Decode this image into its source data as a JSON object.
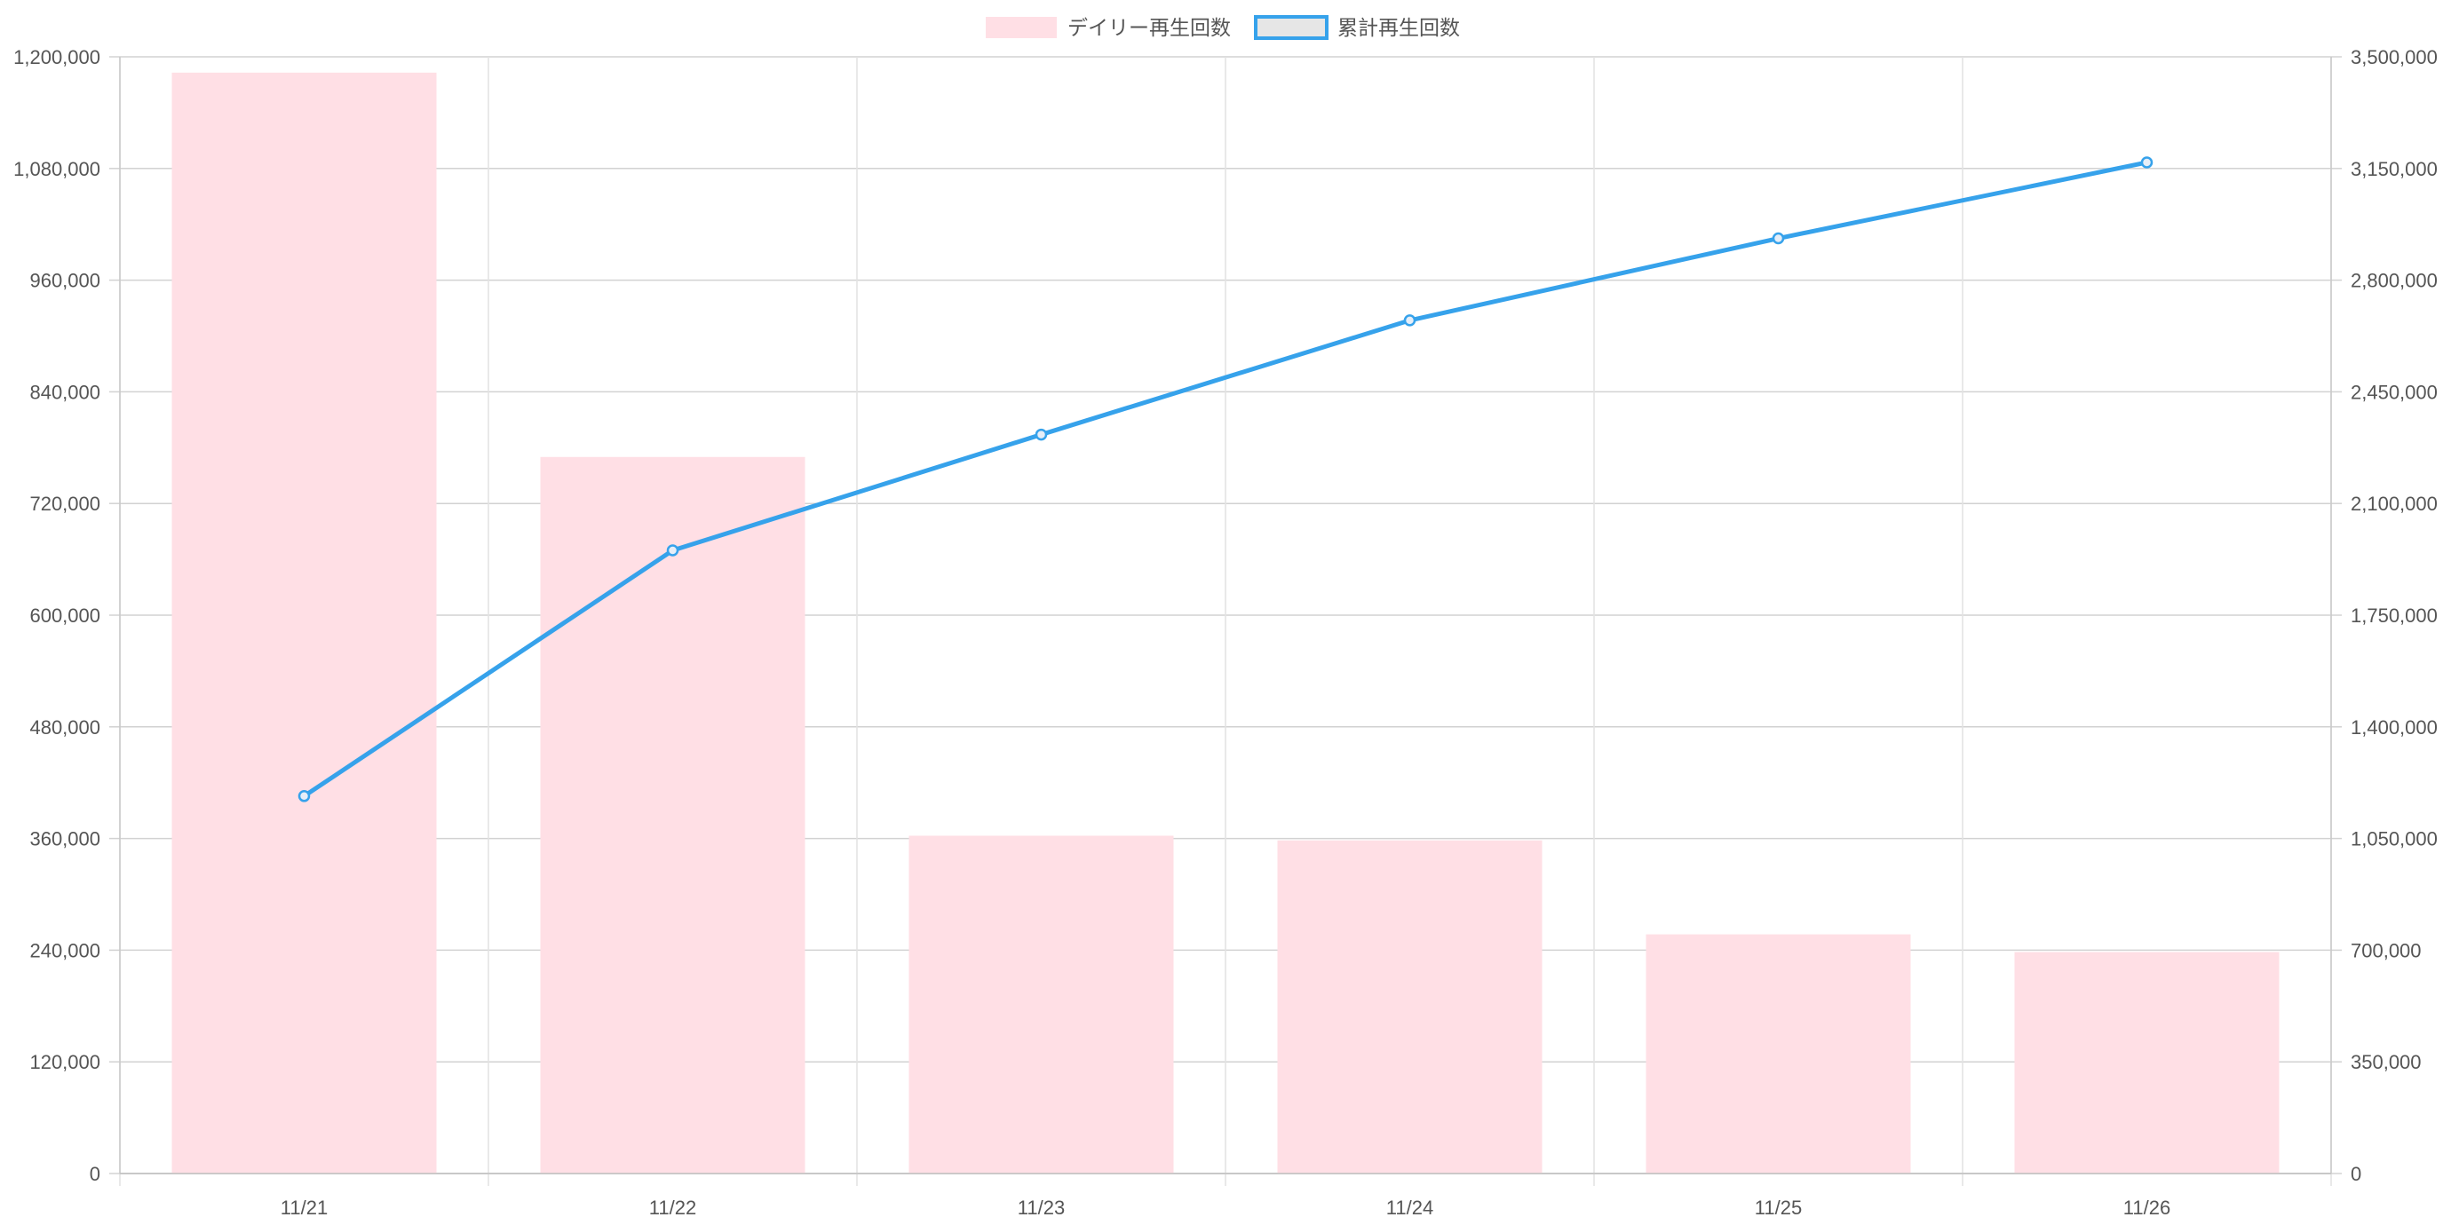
{
  "chart_data": {
    "type": "bar",
    "categories": [
      "11/21",
      "11/22",
      "11/23",
      "11/24",
      "11/25",
      "11/26"
    ],
    "series": [
      {
        "name": "デイリー再生回数",
        "type": "bar",
        "axis": "left",
        "color": "#ffdfe5",
        "values": [
          1183000,
          770000,
          363000,
          358000,
          257000,
          238000
        ]
      },
      {
        "name": "累計再生回数",
        "type": "line",
        "axis": "right",
        "color": "#36a2eb",
        "values": [
          1183000,
          1953000,
          2316000,
          2674000,
          2931000,
          3169000
        ]
      }
    ],
    "y_left": {
      "ylim": [
        0,
        1200000
      ],
      "ticks": [
        "0",
        "120,000",
        "240,000",
        "360,000",
        "480,000",
        "600,000",
        "720,000",
        "840,000",
        "960,000",
        "1,080,000",
        "1,200,000"
      ]
    },
    "y_right": {
      "ylim": [
        0,
        3500000
      ],
      "ticks": [
        "0",
        "350,000",
        "700,000",
        "1,050,000",
        "1,400,000",
        "1,750,000",
        "2,100,000",
        "2,450,000",
        "2,800,000",
        "3,150,000",
        "3,500,000"
      ]
    },
    "legend_position": "top-center",
    "grid": true
  }
}
